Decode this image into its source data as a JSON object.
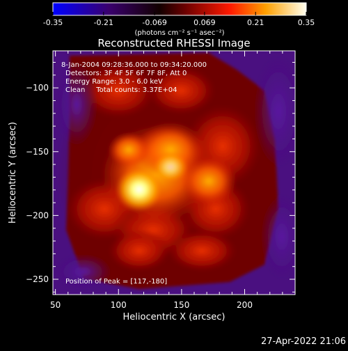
{
  "colorbar": {
    "tick_labels": [
      "-0.35",
      "-0.21",
      "-0.069",
      "0.069",
      "0.21",
      "0.35"
    ],
    "ticks": [
      -0.35,
      -0.21,
      -0.069,
      0.069,
      0.21,
      0.35
    ],
    "range": [
      -0.35,
      0.35
    ],
    "units_label": "(photons cm⁻² s⁻¹ asec⁻²)"
  },
  "chart_data": {
    "type": "heatmap",
    "title": "Reconstructed RHESSI Image",
    "xlabel": "Heliocentric X (arcsec)",
    "ylabel": "Heliocentric Y (arcsec)",
    "xlim": [
      48,
      240
    ],
    "ylim": [
      -262,
      -71
    ],
    "x_ticks": [
      50,
      100,
      150,
      200
    ],
    "x_tick_labels": [
      "50",
      "100",
      "150",
      "200"
    ],
    "y_ticks": [
      -100,
      -150,
      -200,
      -250
    ],
    "y_tick_labels": [
      "−100",
      "−150",
      "−200",
      "−250"
    ],
    "annotations": [
      "8-Jan-2004 09:28:36.000 to 09:34:20.000",
      "Detectors: 3F 4F 5F 6F 7F 8F, Att 0",
      "Energy Range: 3.0 - 6.0 keV",
      "Clean     Total counts: 3.37E+04"
    ],
    "peak_label": "Position of Peak = [117,-180]",
    "peak_position": [
      117,
      -180
    ],
    "colormap": [
      "#0000ff",
      "#40007a",
      "#7a0000",
      "#e01000",
      "#ff9000",
      "#ffe050",
      "#ffffff"
    ]
  },
  "footer": {
    "timestamp": "27-Apr-2022 21:06"
  }
}
